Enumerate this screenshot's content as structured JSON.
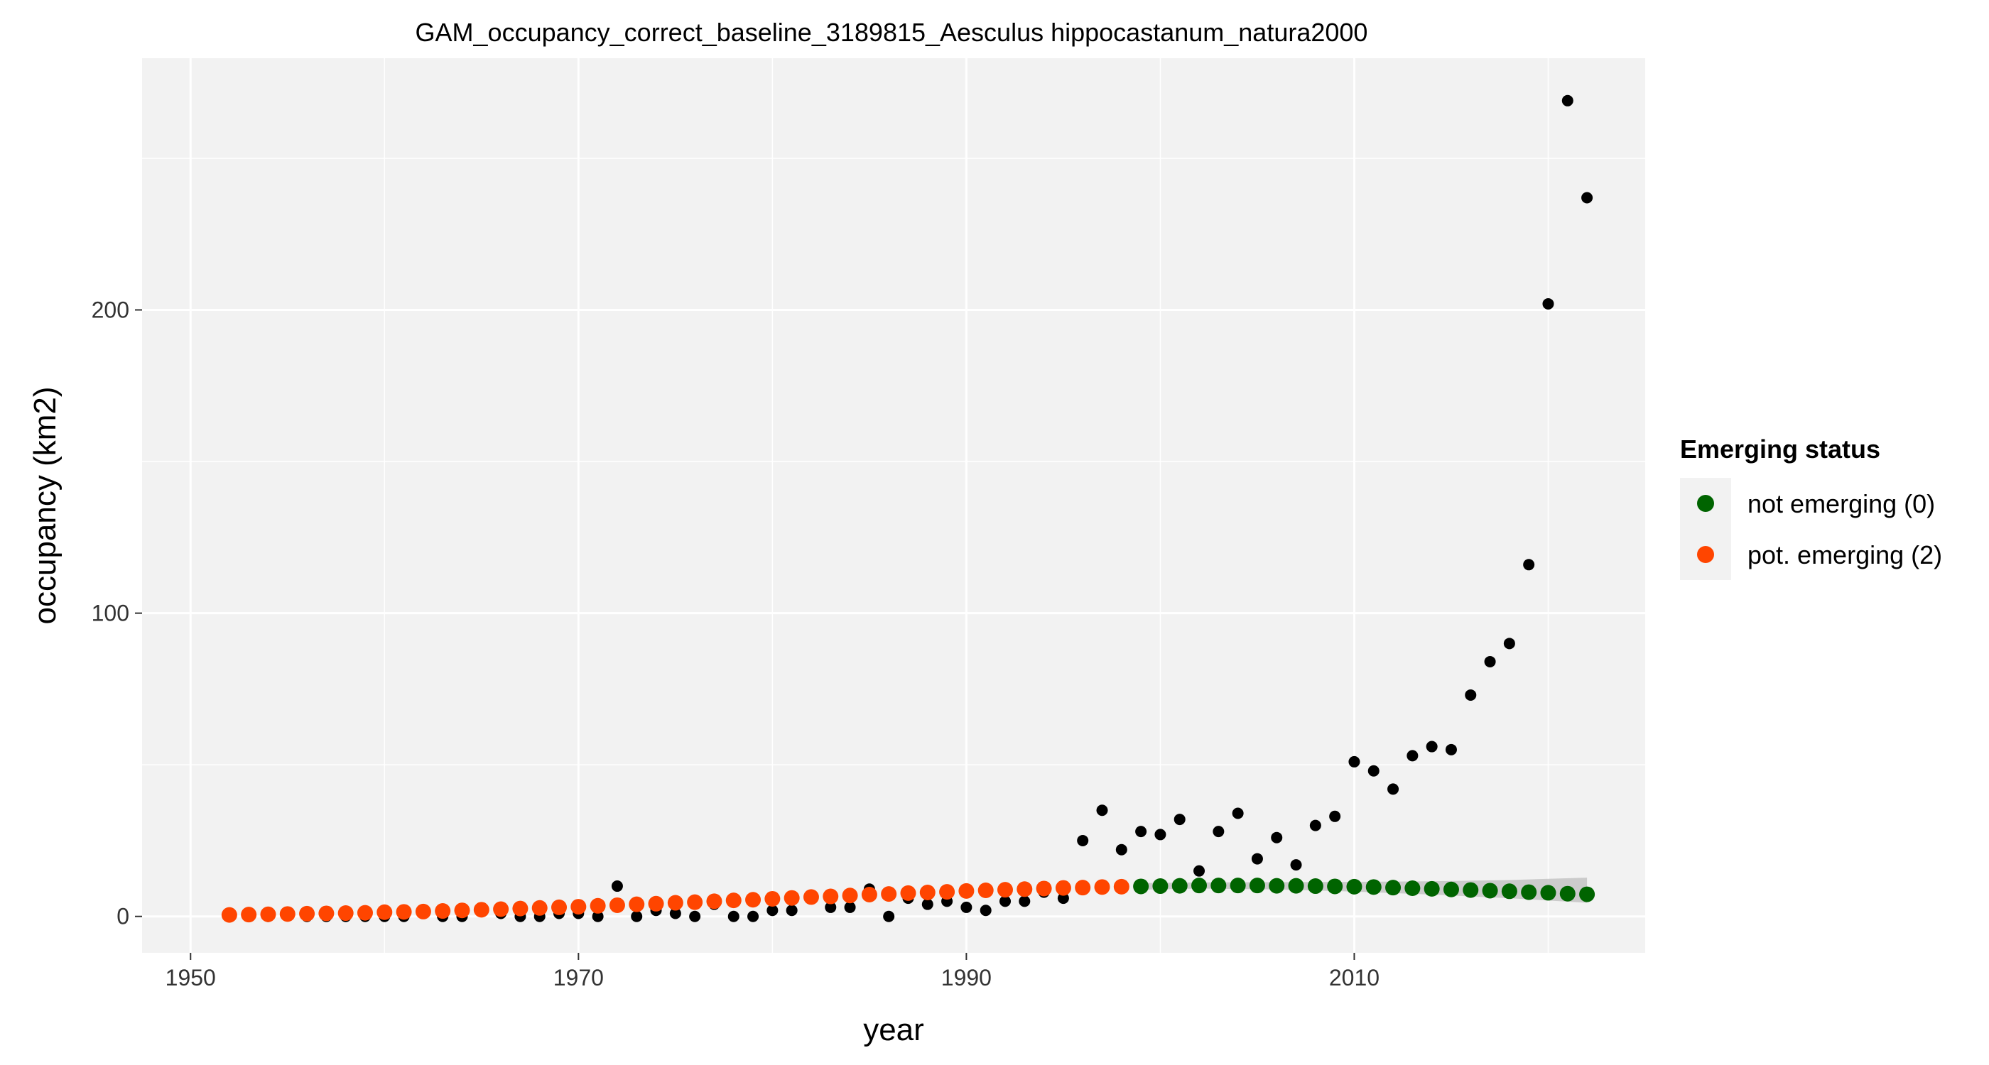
{
  "chart_data": {
    "type": "scatter",
    "title": "GAM_occupancy_correct_baseline_3189815_Aesculus hippocastanum_natura2000",
    "xlabel": "year",
    "ylabel": "occupancy (km2)",
    "xlim": [
      1947.5,
      2025
    ],
    "ylim": [
      -12,
      283
    ],
    "x_ticks": [
      1950,
      1970,
      1990,
      2010
    ],
    "y_ticks": [
      0,
      100,
      200
    ],
    "grid": true,
    "legend": {
      "title": "Emerging status",
      "position": "right",
      "items": [
        {
          "label": "not emerging (0)",
          "color": "#006400"
        },
        {
          "label": "pot. emerging (2)",
          "color": "#FF4500"
        }
      ]
    },
    "observed": {
      "color": "#000000",
      "x": [
        1952,
        1953,
        1954,
        1955,
        1956,
        1957,
        1958,
        1959,
        1960,
        1961,
        1962,
        1963,
        1964,
        1965,
        1966,
        1967,
        1968,
        1969,
        1970,
        1971,
        1972,
        1973,
        1974,
        1975,
        1976,
        1977,
        1978,
        1979,
        1980,
        1981,
        1982,
        1983,
        1984,
        1985,
        1986,
        1987,
        1988,
        1989,
        1990,
        1991,
        1992,
        1993,
        1994,
        1995,
        1996,
        1997,
        1998,
        1999,
        2000,
        2001,
        2002,
        2003,
        2004,
        2005,
        2006,
        2007,
        2008,
        2009,
        2010,
        2011,
        2012,
        2013,
        2014,
        2015,
        2016,
        2017,
        2018,
        2019,
        2020,
        2021,
        2022
      ],
      "y": [
        0,
        0,
        0,
        1,
        0,
        0,
        0,
        0,
        0,
        0,
        1,
        0,
        0,
        2,
        1,
        0,
        0,
        1,
        1,
        0,
        10,
        0,
        2,
        1,
        0,
        4,
        0,
        0,
        2,
        2,
        6,
        3,
        3,
        9,
        0,
        6,
        4,
        5,
        3,
        2,
        5,
        5,
        8,
        6,
        25,
        35,
        22,
        28,
        27,
        32,
        15,
        28,
        34,
        19,
        26,
        17,
        30,
        33,
        51,
        48,
        42,
        53,
        56,
        55,
        73,
        84,
        90,
        116,
        202,
        269,
        237
      ]
    },
    "series": [
      {
        "name": "pot. emerging (2)",
        "color": "#FF4500",
        "x": [
          1952,
          1953,
          1954,
          1955,
          1956,
          1957,
          1958,
          1959,
          1960,
          1961,
          1962,
          1963,
          1964,
          1965,
          1966,
          1967,
          1968,
          1969,
          1970,
          1971,
          1972,
          1973,
          1974,
          1975,
          1976,
          1977,
          1978,
          1979,
          1980,
          1981,
          1982,
          1983,
          1984,
          1985,
          1986,
          1987,
          1988,
          1989,
          1990,
          1991,
          1992,
          1993,
          1994,
          1995,
          1996,
          1997,
          1998
        ],
        "y": [
          0.5,
          0.6,
          0.7,
          0.8,
          0.9,
          1.0,
          1.1,
          1.2,
          1.4,
          1.5,
          1.6,
          1.8,
          2.0,
          2.2,
          2.4,
          2.6,
          2.8,
          3.0,
          3.2,
          3.5,
          3.7,
          4.0,
          4.2,
          4.5,
          4.7,
          5.0,
          5.3,
          5.5,
          5.8,
          6.1,
          6.4,
          6.6,
          6.9,
          7.2,
          7.4,
          7.7,
          7.9,
          8.1,
          8.4,
          8.6,
          8.8,
          9.0,
          9.2,
          9.4,
          9.5,
          9.7,
          9.8
        ]
      },
      {
        "name": "not emerging (0)",
        "color": "#006400",
        "x": [
          1999,
          2000,
          2001,
          2002,
          2003,
          2004,
          2005,
          2006,
          2007,
          2008,
          2009,
          2010,
          2011,
          2012,
          2013,
          2014,
          2015,
          2016,
          2017,
          2018,
          2019,
          2020,
          2021,
          2022
        ],
        "y": [
          9.9,
          10.0,
          10.1,
          10.2,
          10.2,
          10.2,
          10.2,
          10.1,
          10.1,
          10.0,
          9.9,
          9.8,
          9.7,
          9.5,
          9.3,
          9.1,
          8.9,
          8.7,
          8.5,
          8.3,
          8.0,
          7.8,
          7.5,
          7.3
        ]
      }
    ],
    "confidence_band": {
      "color": "#BEBEBE",
      "x": [
        1999,
        2002,
        2006,
        2010,
        2014,
        2018,
        2022
      ],
      "lower": [
        8.8,
        9.2,
        8.9,
        8.2,
        7.2,
        6.0,
        4.5
      ],
      "upper": [
        11.0,
        11.2,
        11.3,
        11.4,
        11.6,
        12.0,
        12.8
      ]
    }
  }
}
